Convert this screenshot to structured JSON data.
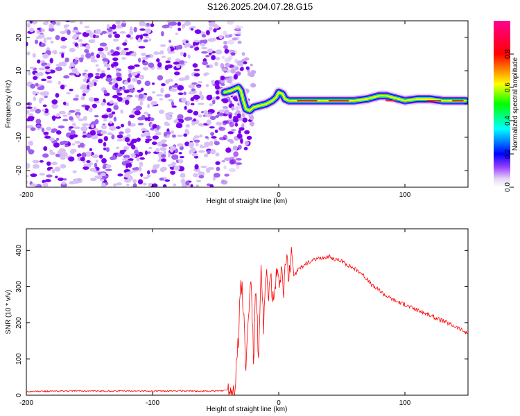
{
  "title": "S126.2025.204.07.28.G15",
  "chart_data": [
    {
      "type": "heatmap",
      "xlabel": "Height of straight line (km)",
      "ylabel": "Frequency (Hz)",
      "xlim": [
        -200,
        150
      ],
      "ylim": [
        -25,
        25
      ],
      "xticks": [
        -200,
        -100,
        0,
        100
      ],
      "yticks": [
        -20,
        -10,
        0,
        10,
        20
      ],
      "colorbar": {
        "label": "Normalized spectral amplitude",
        "range": [
          0,
          1
        ],
        "ticks": [
          "0.0",
          "0.2",
          "0.4",
          "0.6",
          "0.8"
        ],
        "colormap": [
          "#ffffff",
          "#d6b8f2",
          "#8000ff",
          "#0000ff",
          "#00ffff",
          "#00ff00",
          "#ffff00",
          "#ff0000",
          "#ff0080"
        ]
      },
      "ridge": {
        "x": [
          -43,
          -38,
          -35,
          -32,
          -30,
          -28,
          -26,
          -23,
          -20,
          -15,
          -10,
          -5,
          -2,
          0,
          3,
          5,
          8,
          10,
          20,
          40,
          60,
          70,
          75,
          80,
          85,
          90,
          95,
          100,
          110,
          120,
          130,
          140,
          148
        ],
        "y": [
          3.5,
          4,
          4.5,
          5,
          4,
          1,
          -1.5,
          -2,
          -1,
          -0.5,
          0,
          1,
          2,
          3.5,
          3,
          1.5,
          1,
          1,
          1,
          1,
          1,
          1.5,
          2,
          2.5,
          2.5,
          2,
          1.5,
          1,
          1.5,
          1.5,
          1,
          1,
          1
        ]
      },
      "noise_region_x": [
        -200,
        -40
      ]
    },
    {
      "type": "line",
      "xlabel": "Height of straight line (km)",
      "ylabel": "SNR (10 * v/v)",
      "xlim": [
        -200,
        150
      ],
      "ylim": [
        0,
        460
      ],
      "xticks": [
        -200,
        -100,
        0,
        100
      ],
      "yticks": [
        0,
        100,
        200,
        300,
        400
      ],
      "series": [
        {
          "color": "#ff0000",
          "x": [
            -200,
            -180,
            -160,
            -140,
            -120,
            -100,
            -80,
            -60,
            -45,
            -35,
            -32,
            -30,
            -28,
            -26,
            -24,
            -22,
            -20,
            -18,
            -16,
            -14,
            -12,
            -10,
            -8,
            -6,
            -4,
            -2,
            0,
            2,
            4,
            6,
            8,
            10,
            12,
            15,
            20,
            25,
            30,
            35,
            40,
            45,
            50,
            55,
            60,
            65,
            70,
            75,
            80,
            85,
            90,
            100,
            110,
            120,
            130,
            140,
            150
          ],
          "y": [
            10,
            11,
            12,
            11,
            12,
            11,
            12,
            11,
            12,
            20,
            150,
            320,
            250,
            60,
            210,
            330,
            100,
            300,
            80,
            330,
            200,
            330,
            280,
            320,
            240,
            330,
            300,
            350,
            280,
            380,
            320,
            410,
            330,
            345,
            360,
            370,
            375,
            380,
            383,
            375,
            370,
            360,
            350,
            340,
            320,
            300,
            290,
            275,
            265,
            250,
            235,
            220,
            205,
            190,
            170
          ]
        }
      ]
    }
  ]
}
